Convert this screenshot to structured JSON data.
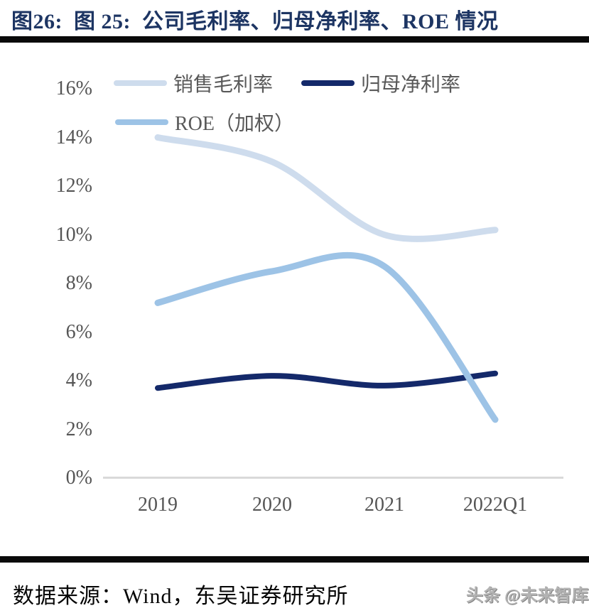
{
  "title": "图26:  图 25:  公司毛利率、归母净利率、ROE 情况",
  "footer": {
    "source": "数据来源：Wind，东吴证券研究所",
    "watermark": "头条 @未来智库"
  },
  "chart_data": {
    "type": "line",
    "title": "公司毛利率、归母净利率、ROE 情况",
    "categories": [
      "2019",
      "2020",
      "2021",
      "2022Q1"
    ],
    "series": [
      {
        "name": "销售毛利率",
        "color": "#cedced",
        "values": [
          14.0,
          13.0,
          10.0,
          10.2
        ]
      },
      {
        "name": "归母净利率",
        "color": "#14296a",
        "values": [
          3.7,
          4.2,
          3.8,
          4.3
        ]
      },
      {
        "name": "ROE（加权）",
        "color": "#9dc3e6",
        "values": [
          7.2,
          8.5,
          8.7,
          2.4
        ]
      }
    ],
    "unit": "%",
    "ylim": [
      0,
      16
    ],
    "ytick_step": 2,
    "yticks": [
      "16%",
      "14%",
      "12%",
      "10%",
      "8%",
      "6%",
      "4%",
      "2%",
      "0%"
    ],
    "grid": false,
    "smooth": true,
    "legend_position": "top-left"
  }
}
